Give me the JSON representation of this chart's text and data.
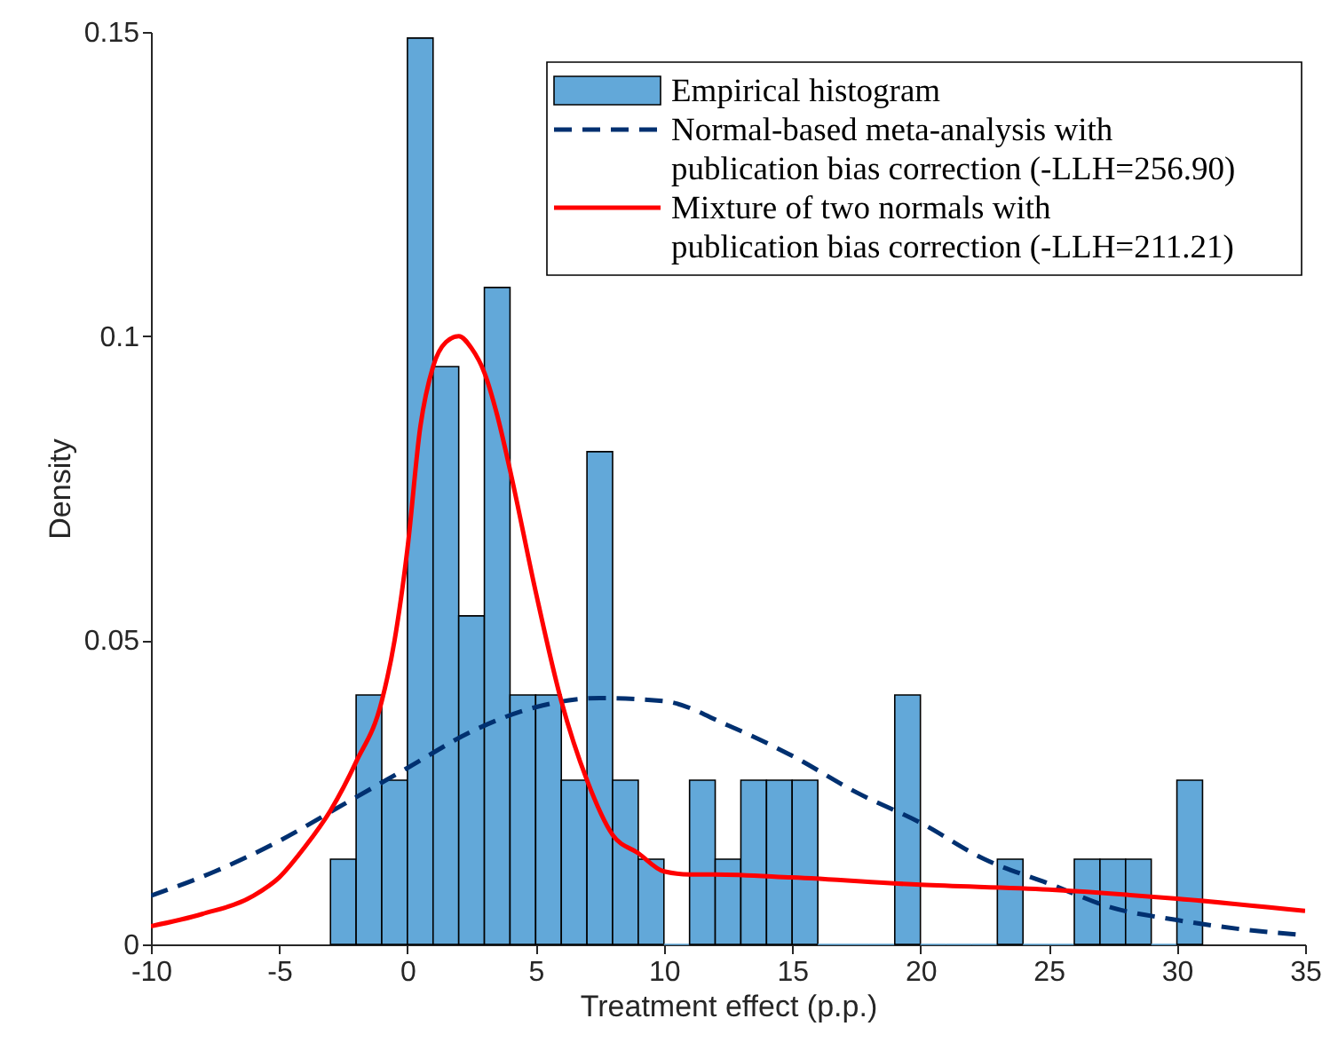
{
  "chart_data": {
    "type": "histogram",
    "xlabel": "Treatment effect (p.p.)",
    "ylabel": "Density",
    "xlim": [
      -10,
      35
    ],
    "xticks": [
      -10,
      -5,
      0,
      5,
      10,
      15,
      20,
      25,
      30,
      35
    ],
    "ylim": [
      0,
      0.15
    ],
    "yticks": [
      0,
      0.05,
      0.1,
      0.15
    ],
    "grid": false,
    "legend": "top right",
    "series": [
      {
        "name": "Empirical histogram",
        "color": "#62a8d9",
        "bins": [
          -3,
          -2,
          -1,
          0,
          1,
          2,
          3,
          4,
          5,
          6,
          7,
          8,
          9,
          10,
          11,
          12,
          13,
          14,
          15,
          16,
          17,
          18,
          19,
          20,
          21,
          22,
          23,
          24,
          25,
          26,
          27,
          28,
          29,
          30,
          31
        ],
        "values": [
          0.014,
          0.041,
          0.027,
          0.149,
          0.095,
          0.054,
          0.108,
          0.041,
          0.041,
          0.027,
          0.081,
          0.027,
          0.014,
          0,
          0.027,
          0.014,
          0.027,
          0.027,
          0.027,
          0,
          0,
          0,
          0.041,
          0,
          0,
          0,
          0.014,
          0,
          0,
          0.014,
          0.014,
          0.014,
          0,
          0.027
        ]
      },
      {
        "type": "line",
        "line_style": "dashed",
        "name": "Normal-based meta-analysis with\npublication bias correction (-LLH=256.90)",
        "color": "#003070",
        "x": [
          -10,
          -7.5,
          -5,
          -2.5,
          0,
          2.5,
          5,
          7.5,
          10,
          12.5,
          15,
          17.5,
          20,
          22.5,
          25,
          27.5,
          30,
          32.5,
          35
        ],
        "values": [
          0.008,
          0.012,
          0.017,
          0.023,
          0.029,
          0.035,
          0.039,
          0.0405,
          0.04,
          0.036,
          0.031,
          0.025,
          0.02,
          0.014,
          0.01,
          0.006,
          0.004,
          0.0025,
          0.0015
        ]
      },
      {
        "type": "line",
        "line_style": "solid",
        "name": "Mixture of two normals with\npublication bias correction (-LLH=211.21)",
        "color": "#ff0000",
        "x": [
          -10,
          -8,
          -6,
          -5,
          -4,
          -3,
          -2,
          -1,
          -0.5,
          0,
          0.5,
          1,
          1.5,
          2,
          2.5,
          3,
          3.5,
          4,
          5,
          6,
          7,
          8,
          9,
          10,
          11,
          12,
          15,
          20,
          25,
          30,
          35
        ],
        "values": [
          0.003,
          0.005,
          0.008,
          0.011,
          0.016,
          0.022,
          0.03,
          0.04,
          0.05,
          0.065,
          0.085,
          0.095,
          0.099,
          0.1,
          0.098,
          0.094,
          0.087,
          0.078,
          0.058,
          0.04,
          0.027,
          0.018,
          0.015,
          0.012,
          0.0115,
          0.0115,
          0.011,
          0.0098,
          0.009,
          0.0075,
          0.0055
        ]
      }
    ]
  }
}
